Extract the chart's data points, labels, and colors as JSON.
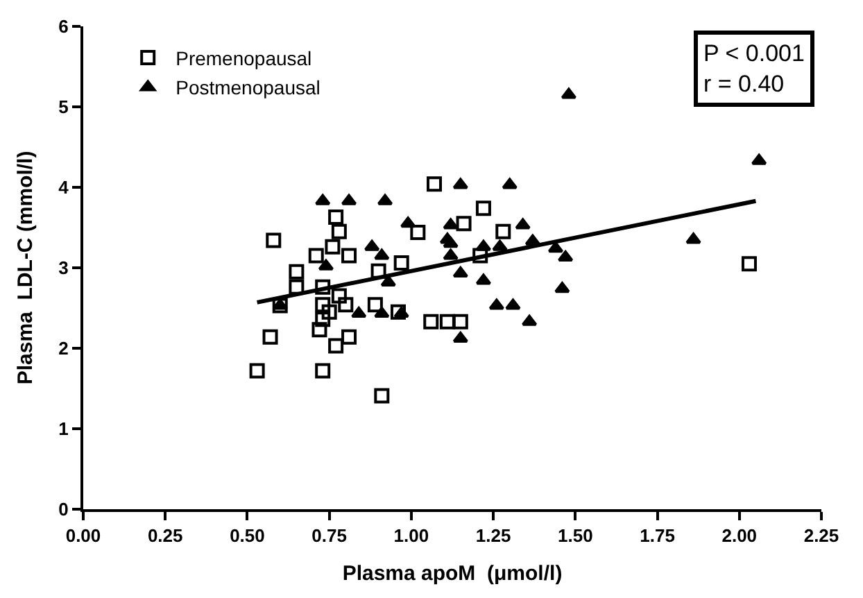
{
  "chart_data": {
    "type": "scatter",
    "xlabel": "Plasma apoM  (μmol/l)",
    "ylabel": "Plasma  LDL-C (mmol/l)",
    "annotations": [
      "P < 0.001\nr = 0.40"
    ],
    "xlim": [
      0,
      2.25
    ],
    "ylim": [
      0,
      6
    ],
    "xticks": [
      {
        "value": 0,
        "label": "0.00"
      },
      {
        "value": 0.25,
        "label": "0.25"
      },
      {
        "value": 0.5,
        "label": "0.50"
      },
      {
        "value": 0.75,
        "label": "0.75"
      },
      {
        "value": 1,
        "label": "1.00"
      },
      {
        "value": 1.25,
        "label": "1.25"
      },
      {
        "value": 1.5,
        "label": "1.50"
      },
      {
        "value": 1.75,
        "label": "1.75"
      },
      {
        "value": 2,
        "label": "2.00"
      },
      {
        "value": 2.25,
        "label": "2.25"
      }
    ],
    "yticks": [
      0,
      1,
      2,
      3,
      4,
      5,
      6
    ],
    "legend": "top left",
    "series": [
      {
        "name": "Premenopausal",
        "color": "#000000",
        "marker": "square",
        "x": [
          0.58,
          0.77,
          0.78,
          0.76,
          0.71,
          0.81,
          0.65,
          0.65,
          0.73,
          0.78,
          0.8,
          0.73,
          0.75,
          0.73,
          0.72,
          0.81,
          0.77,
          0.57,
          0.53,
          0.73,
          0.6,
          1.07,
          1.22,
          1.16,
          1.02,
          1.28,
          1.21,
          0.97,
          0.9,
          0.89,
          0.96,
          1.06,
          1.11,
          1.15,
          0.91,
          2.03
        ],
        "values": [
          3.34,
          3.63,
          3.45,
          3.26,
          3.15,
          3.15,
          2.95,
          2.76,
          2.76,
          2.65,
          2.54,
          2.54,
          2.45,
          2.36,
          2.23,
          2.14,
          2.03,
          2.14,
          1.72,
          1.72,
          2.53,
          4.04,
          3.74,
          3.55,
          3.44,
          3.45,
          3.15,
          3.06,
          2.96,
          2.54,
          2.45,
          2.33,
          2.33,
          2.33,
          1.41,
          3.05
        ]
      },
      {
        "name": "Postmenopausal",
        "color": "#000000",
        "marker": "triangle",
        "x": [
          0.73,
          0.81,
          0.74,
          0.84,
          0.6,
          1.15,
          1.3,
          0.92,
          0.99,
          1.12,
          1.34,
          1.11,
          1.12,
          0.88,
          0.91,
          1.12,
          1.22,
          1.27,
          1.37,
          0.93,
          1.15,
          1.22,
          0.91,
          0.97,
          1.26,
          1.31,
          1.36,
          1.15,
          1.48,
          2.06,
          1.44,
          1.47,
          1.46,
          1.86
        ],
        "values": [
          3.83,
          3.83,
          3.02,
          2.43,
          2.53,
          4.03,
          4.03,
          3.83,
          3.55,
          3.53,
          3.53,
          3.35,
          3.3,
          3.26,
          3.15,
          3.15,
          3.26,
          3.26,
          3.33,
          2.82,
          2.93,
          2.84,
          2.43,
          2.43,
          2.53,
          2.53,
          2.33,
          2.12,
          5.15,
          4.33,
          3.24,
          3.13,
          2.74,
          3.35
        ]
      },
      {
        "type": "line",
        "color": "#000000",
        "marker": "none",
        "line_style": "solid",
        "x": [
          0.53,
          2.05
        ],
        "values": [
          2.57,
          3.83
        ]
      }
    ]
  }
}
